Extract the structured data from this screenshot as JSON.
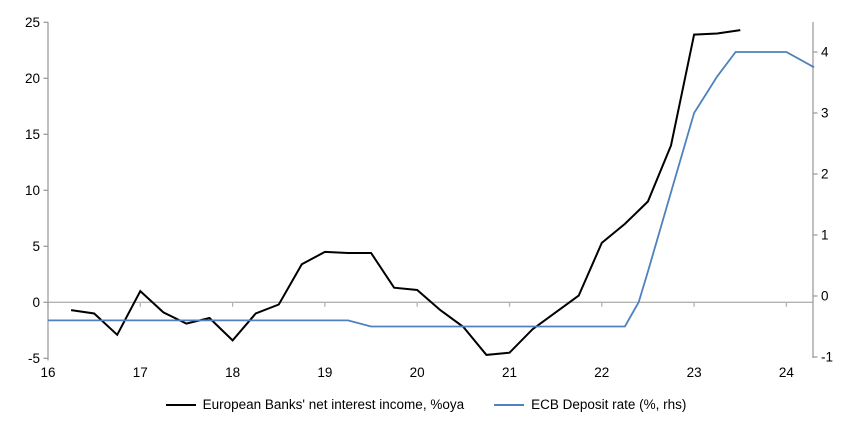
{
  "chart_data": {
    "type": "line",
    "title": "",
    "xlabel": "",
    "ylabel_left": "%oya",
    "ylabel_right": "%",
    "grid": "zero-line-only",
    "legend_position": "bottom",
    "x_axis": {
      "ticks": [
        16,
        17,
        18,
        19,
        20,
        21,
        22,
        23,
        24
      ],
      "range": [
        16,
        24.3
      ]
    },
    "left_axis": {
      "ticks": [
        25,
        20,
        15,
        10,
        5,
        0,
        -5
      ],
      "range": [
        -5,
        25
      ]
    },
    "right_axis": {
      "ticks": [
        4,
        3,
        2,
        1,
        0,
        -1
      ],
      "range": [
        -1,
        4.3
      ]
    },
    "series": [
      {
        "id": "nii-line",
        "name": "European Banks' net interest income, %oya",
        "color": "#000000",
        "width": 2,
        "axis": "left",
        "points": [
          [
            16.25,
            -0.7
          ],
          [
            16.5,
            -1.0
          ],
          [
            16.75,
            -2.9
          ],
          [
            17.0,
            1.0
          ],
          [
            17.25,
            -0.9
          ],
          [
            17.5,
            -1.9
          ],
          [
            17.75,
            -1.4
          ],
          [
            18.0,
            -3.4
          ],
          [
            18.25,
            -1.0
          ],
          [
            18.5,
            -0.2
          ],
          [
            18.75,
            3.4
          ],
          [
            19.0,
            4.5
          ],
          [
            19.25,
            4.4
          ],
          [
            19.5,
            4.4
          ],
          [
            19.75,
            1.3
          ],
          [
            20.0,
            1.1
          ],
          [
            20.25,
            -0.7
          ],
          [
            20.5,
            -2.2
          ],
          [
            20.75,
            -4.7
          ],
          [
            21.0,
            -4.5
          ],
          [
            21.25,
            -2.4
          ],
          [
            21.5,
            -0.9
          ],
          [
            21.75,
            0.6
          ],
          [
            22.0,
            5.3
          ],
          [
            22.25,
            7.0
          ],
          [
            22.5,
            9.0
          ],
          [
            22.75,
            14.0
          ],
          [
            23.0,
            23.9
          ],
          [
            23.25,
            24.0
          ],
          [
            23.5,
            24.3
          ]
        ]
      },
      {
        "id": "ecb-deposit-rate-line",
        "name": "ECB Deposit rate (%, rhs)",
        "color": "#4E81BD",
        "width": 1.8,
        "axis": "right",
        "points": [
          [
            16.0,
            -0.4
          ],
          [
            19.25,
            -0.4
          ],
          [
            19.5,
            -0.5
          ],
          [
            22.25,
            -0.5
          ],
          [
            22.4,
            -0.1
          ],
          [
            22.5,
            0.4
          ],
          [
            22.75,
            1.7
          ],
          [
            23.0,
            3.0
          ],
          [
            23.25,
            3.6
          ],
          [
            23.45,
            4.0
          ],
          [
            24.0,
            4.0
          ],
          [
            24.3,
            3.75
          ]
        ]
      }
    ],
    "colors": {
      "axis_line": "#9d9d9d",
      "zero_line": "#b3b3b3",
      "label_text": "#000000"
    }
  }
}
